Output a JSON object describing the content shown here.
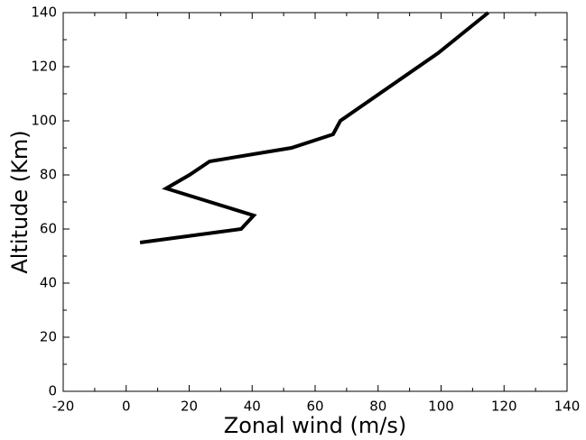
{
  "chart_data": {
    "type": "line",
    "x_label": "Zonal wind (m/s)",
    "y_label": "Altitude (Km)",
    "x": [
      4.4,
      36.5,
      40.5,
      12.7,
      20.1,
      26.5,
      52.5,
      65.7,
      68,
      99,
      115
    ],
    "values": [
      55,
      60,
      65,
      75,
      80,
      85,
      90,
      95,
      100,
      125,
      140
    ],
    "color": "#000000",
    "xlim": [
      -20,
      140
    ],
    "xticks": [
      -20,
      0,
      20,
      40,
      60,
      80,
      100,
      120,
      140
    ],
    "ylim": [
      0,
      140
    ],
    "yticks": [
      0,
      20,
      40,
      60,
      80,
      100,
      120,
      140
    ]
  }
}
